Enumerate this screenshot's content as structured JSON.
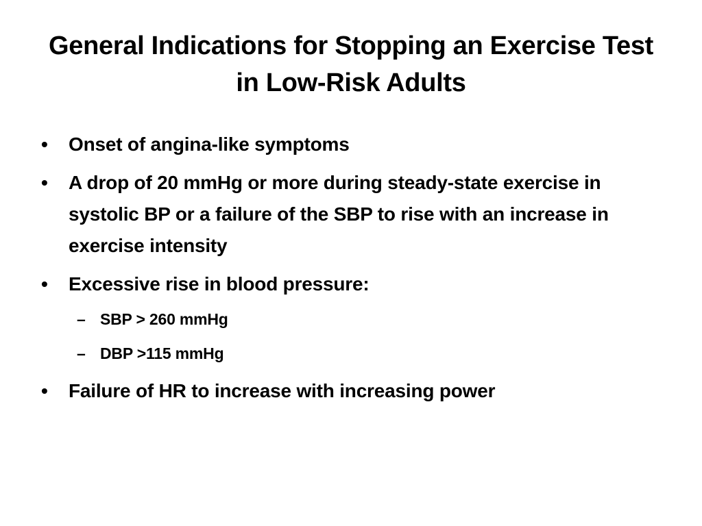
{
  "slide": {
    "title": "General Indications for Stopping an Exercise Test in Low-Risk Adults",
    "bullet_symbol": "•",
    "sub_bullet_symbol": "–",
    "bullets": [
      {
        "text": "Onset of angina-like symptoms",
        "sub": []
      },
      {
        "text": "A drop of 20 mmHg or more during steady-state exercise in systolic BP or a failure of the SBP to rise with an increase in exercise intensity",
        "sub": []
      },
      {
        "text": "Excessive rise in blood pressure:",
        "sub": [
          {
            "text": "SBP > 260 mmHg"
          },
          {
            "text": "DBP >115 mmHg"
          }
        ]
      },
      {
        "text": "Failure of HR to increase with increasing power",
        "sub": []
      }
    ],
    "colors": {
      "background": "#ffffff",
      "text": "#000000"
    }
  }
}
